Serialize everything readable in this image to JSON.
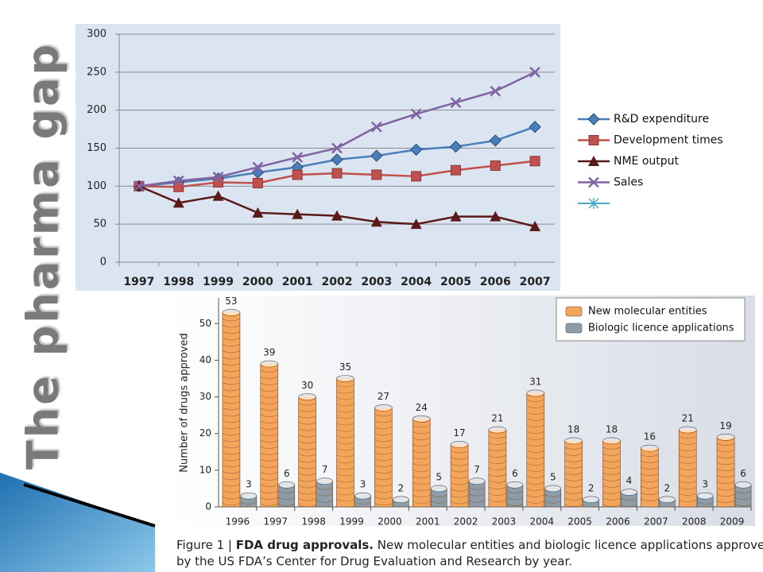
{
  "slide_title": "The pharma gap",
  "caption": {
    "figure": "Figure 1 |",
    "title": "FDA drug approvals.",
    "text": [
      "New molecular entities and biologic licence applications approved",
      "by the US FDA’s Center for Drug Evaluation and Research by year."
    ]
  },
  "chart_data": [
    {
      "type": "line",
      "categories": [
        "1997",
        "1998",
        "1999",
        "2000",
        "2001",
        "2002",
        "2003",
        "2004",
        "2005",
        "2006",
        "2007"
      ],
      "ylim": [
        0,
        300
      ],
      "yticks": [
        0,
        50,
        100,
        150,
        200,
        250,
        300
      ],
      "grid": true,
      "legend": "right",
      "series": [
        {
          "name": "R&D expenditure",
          "color": "#4a7ebb",
          "marker": "diamond",
          "values": [
            100,
            105,
            110,
            118,
            125,
            135,
            140,
            148,
            152,
            160,
            178
          ]
        },
        {
          "name": "Development times",
          "color": "#c0504d",
          "marker": "square",
          "values": [
            100,
            99,
            105,
            104,
            115,
            117,
            115,
            113,
            121,
            127,
            133
          ]
        },
        {
          "name": "NME output",
          "color": "#5a1a1a",
          "marker": "triangle",
          "values": [
            100,
            78,
            87,
            65,
            63,
            61,
            53,
            50,
            60,
            60,
            47
          ]
        },
        {
          "name": "Sales",
          "color": "#8064a2",
          "marker": "x",
          "values": [
            100,
            107,
            112,
            125,
            138,
            150,
            178,
            195,
            210,
            225,
            250
          ]
        }
      ]
    },
    {
      "type": "bar",
      "ylabel": "Number of drugs approved",
      "categories": [
        "1996",
        "1997",
        "1998",
        "1999",
        "2000",
        "2001",
        "2002",
        "2003",
        "2004",
        "2005",
        "2006",
        "2007",
        "2008",
        "2009"
      ],
      "ylim": [
        0,
        57
      ],
      "yticks": [
        0,
        10,
        20,
        30,
        40,
        50
      ],
      "legend": "upper right",
      "series": [
        {
          "name": "New molecular entities",
          "color": "#f5a55a",
          "values": [
            53,
            39,
            30,
            35,
            27,
            24,
            17,
            21,
            31,
            18,
            18,
            16,
            21,
            19
          ]
        },
        {
          "name": "Biologic licence applications",
          "color": "#8d9ca6",
          "values": [
            3,
            6,
            7,
            3,
            2,
            5,
            7,
            6,
            5,
            2,
            4,
            2,
            3,
            6
          ]
        }
      ]
    }
  ]
}
